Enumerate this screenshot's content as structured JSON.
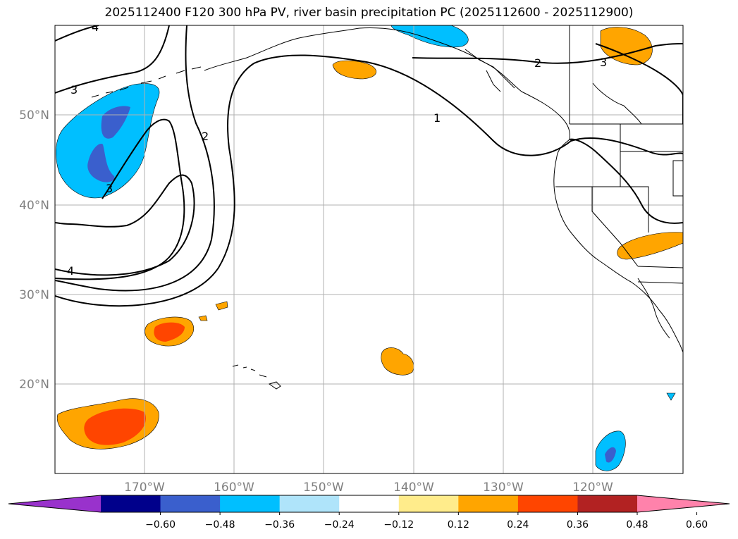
{
  "title": "2025112400 F120 300 hPa PV, river basin precipitation PC (2025112600 - 2025112900)",
  "lat_labels": [
    "50°N",
    "40°N",
    "30°N",
    "20°N"
  ],
  "lon_labels": [
    "170°W",
    "160°W",
    "150°W",
    "140°W",
    "130°W",
    "120°W"
  ],
  "colorbar": {
    "tick_labels": [
      "−0.60",
      "−0.48",
      "−0.36",
      "−0.24",
      "−0.12",
      "0.12",
      "0.24",
      "0.36",
      "0.48",
      "0.60"
    ],
    "colors": [
      "#9932cc",
      "#00008b",
      "#3a5fcd",
      "#00bfff",
      "#afe4fa",
      "#ffffff",
      "#ffec8b",
      "#ffa500",
      "#ff4500",
      "#b22222",
      "#ff82ab"
    ]
  },
  "contour_labels": [
    "4",
    "3",
    "3",
    "2",
    "4",
    "1",
    "2",
    "3"
  ],
  "colors": {
    "orange": "#ffa500",
    "orangered": "#ff4500",
    "deepskyblue": "#00bfff",
    "royalblue": "#3a5fcd",
    "grid": "#b0b0b0"
  }
}
